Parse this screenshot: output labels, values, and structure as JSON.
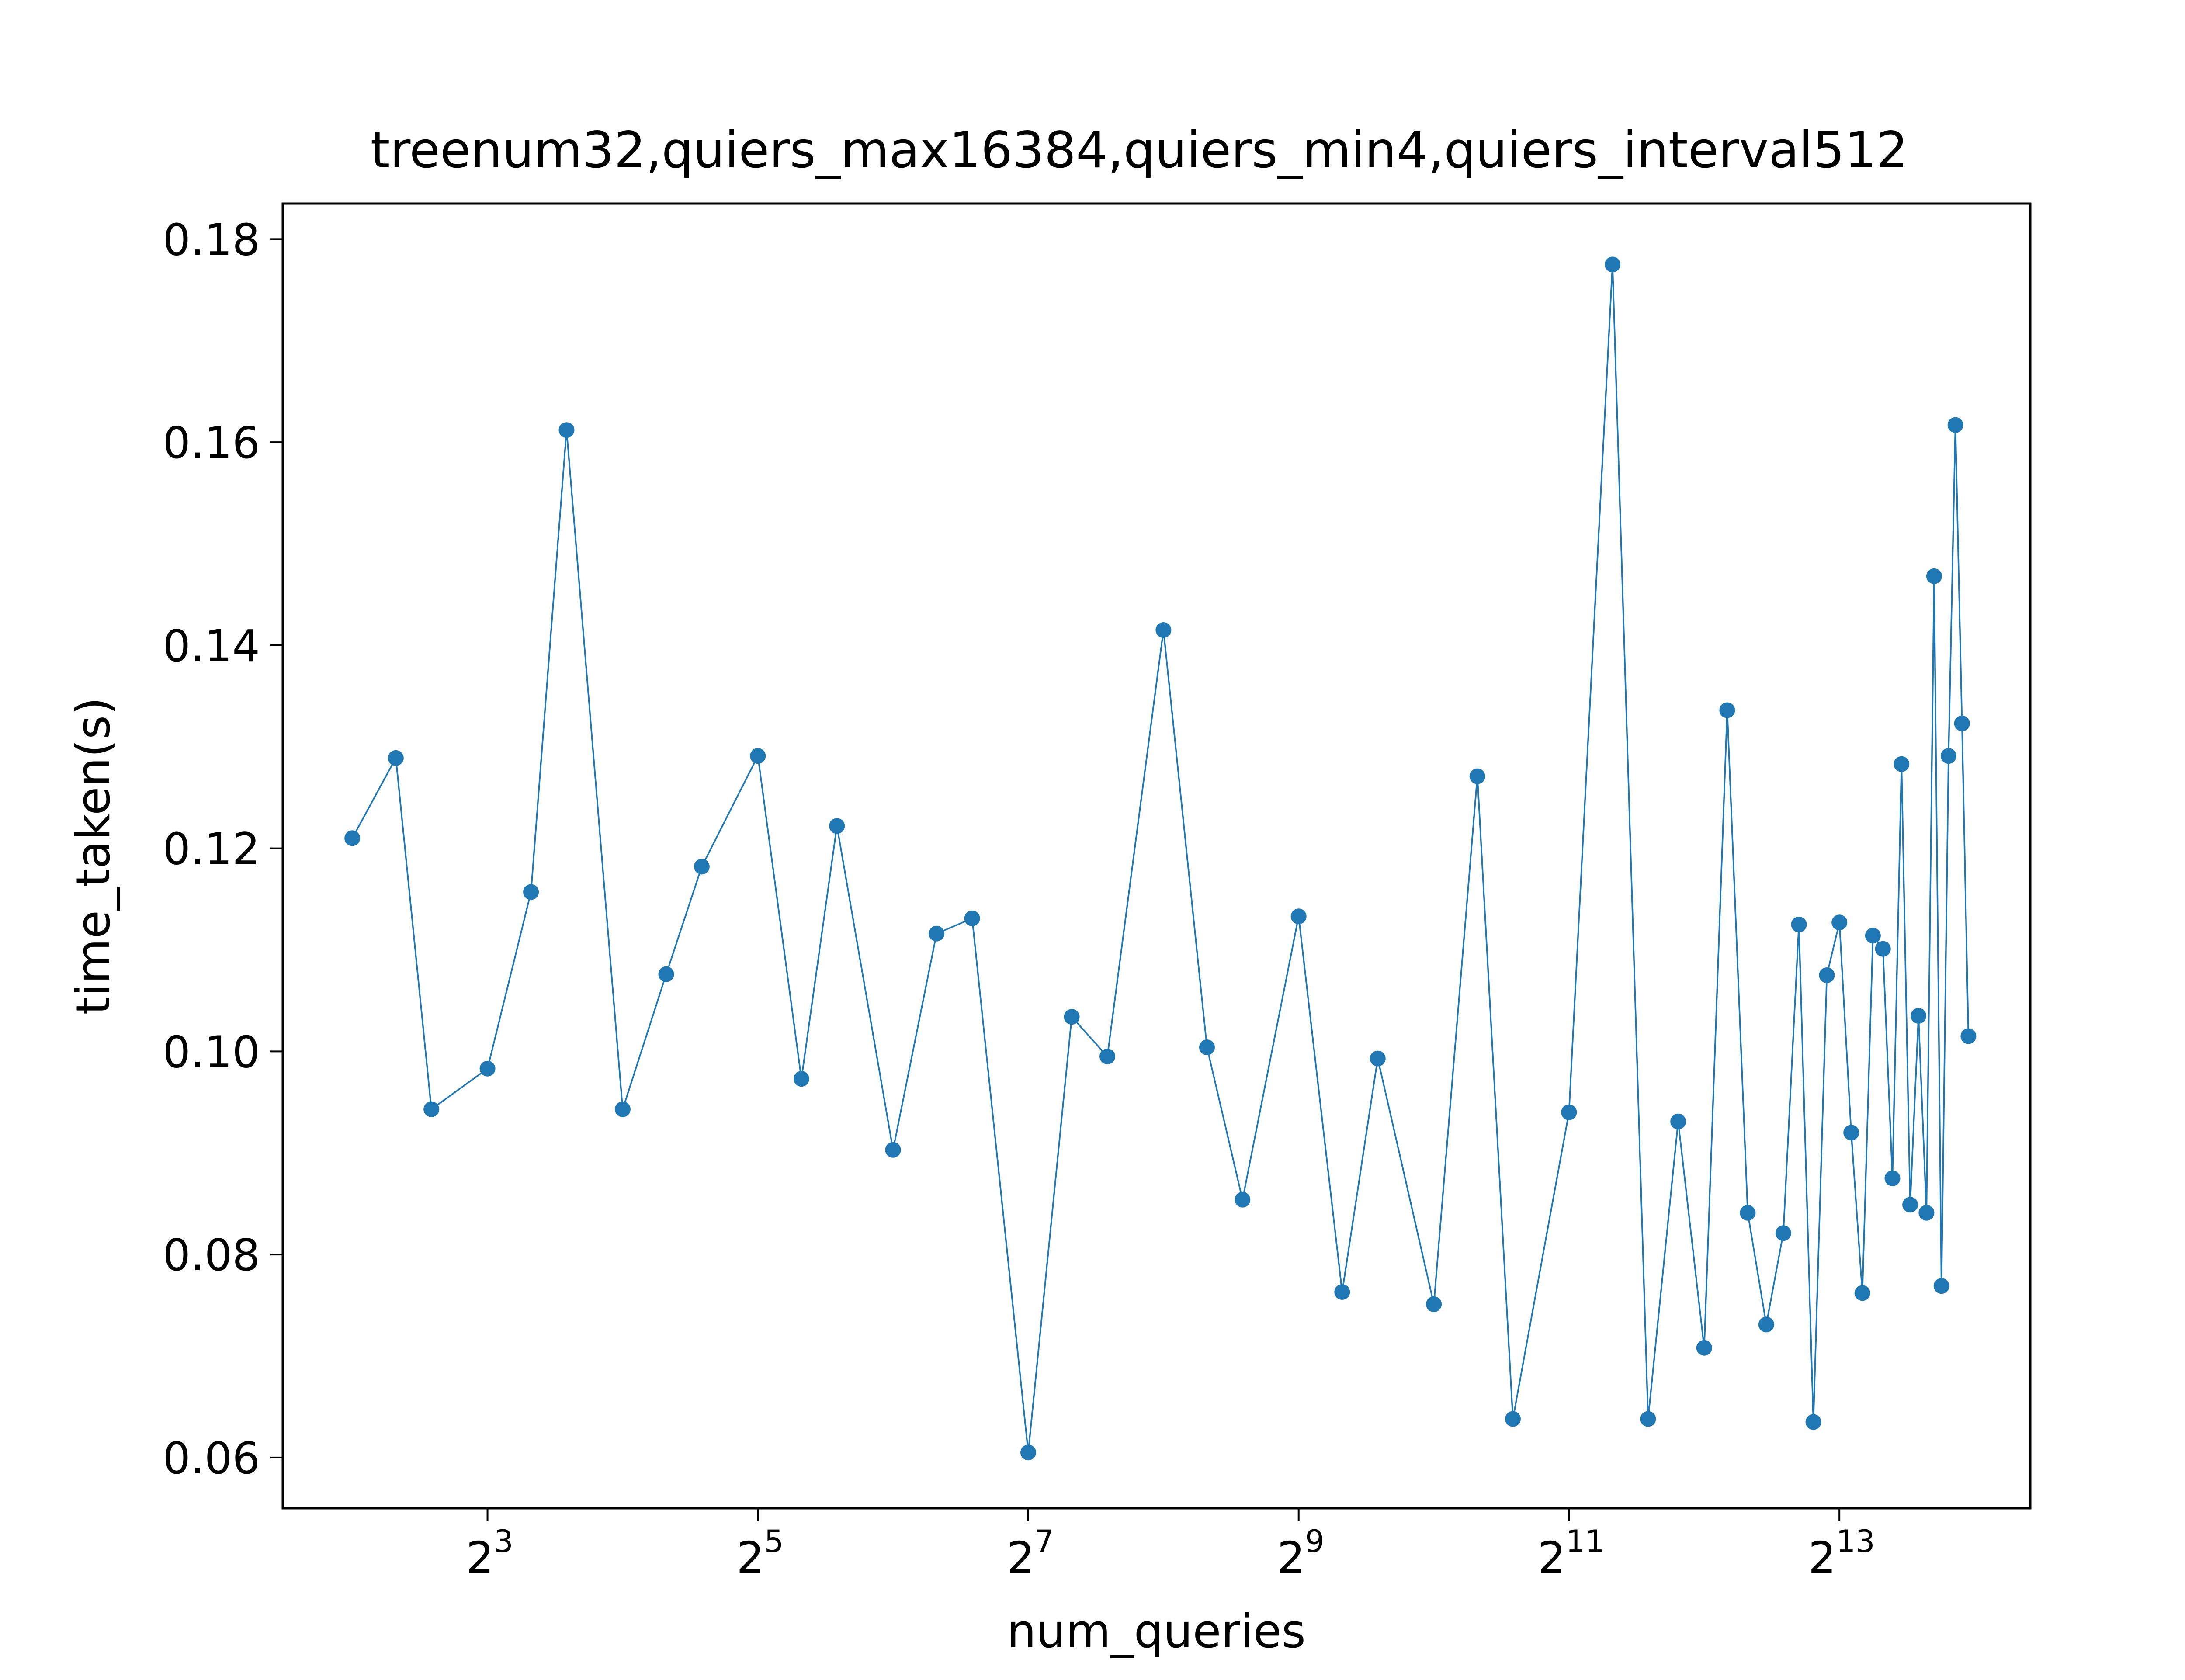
{
  "chart_data": {
    "type": "line",
    "title": "treenum32,quiers_max16384,quiers_min4,quiers_interval512",
    "xlabel": "num_queries",
    "ylabel": "time_taken(s)",
    "xscale": "log2",
    "xlim": [
      2.8,
      21800
    ],
    "ylim": [
      0.055,
      0.1835
    ],
    "grid": false,
    "legend": "none",
    "x_ticks": [
      {
        "value": 8,
        "base": "2",
        "exp": "3"
      },
      {
        "value": 32,
        "base": "2",
        "exp": "5"
      },
      {
        "value": 128,
        "base": "2",
        "exp": "7"
      },
      {
        "value": 512,
        "base": "2",
        "exp": "9"
      },
      {
        "value": 2048,
        "base": "2",
        "exp": "11"
      },
      {
        "value": 8192,
        "base": "2",
        "exp": "13"
      }
    ],
    "y_ticks": [
      "0.06",
      "0.08",
      "0.10",
      "0.12",
      "0.14",
      "0.16",
      "0.18"
    ],
    "series": [
      {
        "color": "#1f77b4",
        "x": [
          4,
          5,
          6,
          8,
          10,
          12,
          16,
          20,
          24,
          32,
          40,
          48,
          64,
          80,
          96,
          128,
          160,
          192,
          256,
          320,
          384,
          512,
          640,
          768,
          1024,
          1280,
          1536,
          2048,
          2560,
          3072,
          3584,
          4096,
          4608,
          5120,
          5632,
          6144,
          6656,
          7168,
          7680,
          8192,
          8704,
          9216,
          9728,
          10240,
          10752,
          11264,
          11776,
          12288,
          12800,
          13312,
          13824,
          14336,
          14848,
          15360,
          15872
        ],
        "y": [
          0.121,
          0.1289,
          0.0943,
          0.0983,
          0.1157,
          0.1612,
          0.0943,
          0.1076,
          0.1182,
          0.1291,
          0.0973,
          0.1222,
          0.0903,
          0.1116,
          0.1131,
          0.0605,
          0.1034,
          0.0995,
          0.1415,
          0.1004,
          0.0854,
          0.1133,
          0.0763,
          0.0993,
          0.0751,
          0.1271,
          0.0638,
          0.094,
          0.1775,
          0.0638,
          0.0931,
          0.0708,
          0.1336,
          0.0841,
          0.0731,
          0.0821,
          0.1125,
          0.0635,
          0.1075,
          0.1127,
          0.092,
          0.0762,
          0.1114,
          0.1101,
          0.0875,
          0.1283,
          0.0849,
          0.1035,
          0.0841,
          0.1468,
          0.0769,
          0.1291,
          0.1617,
          0.1323,
          0.1015
        ]
      }
    ]
  }
}
